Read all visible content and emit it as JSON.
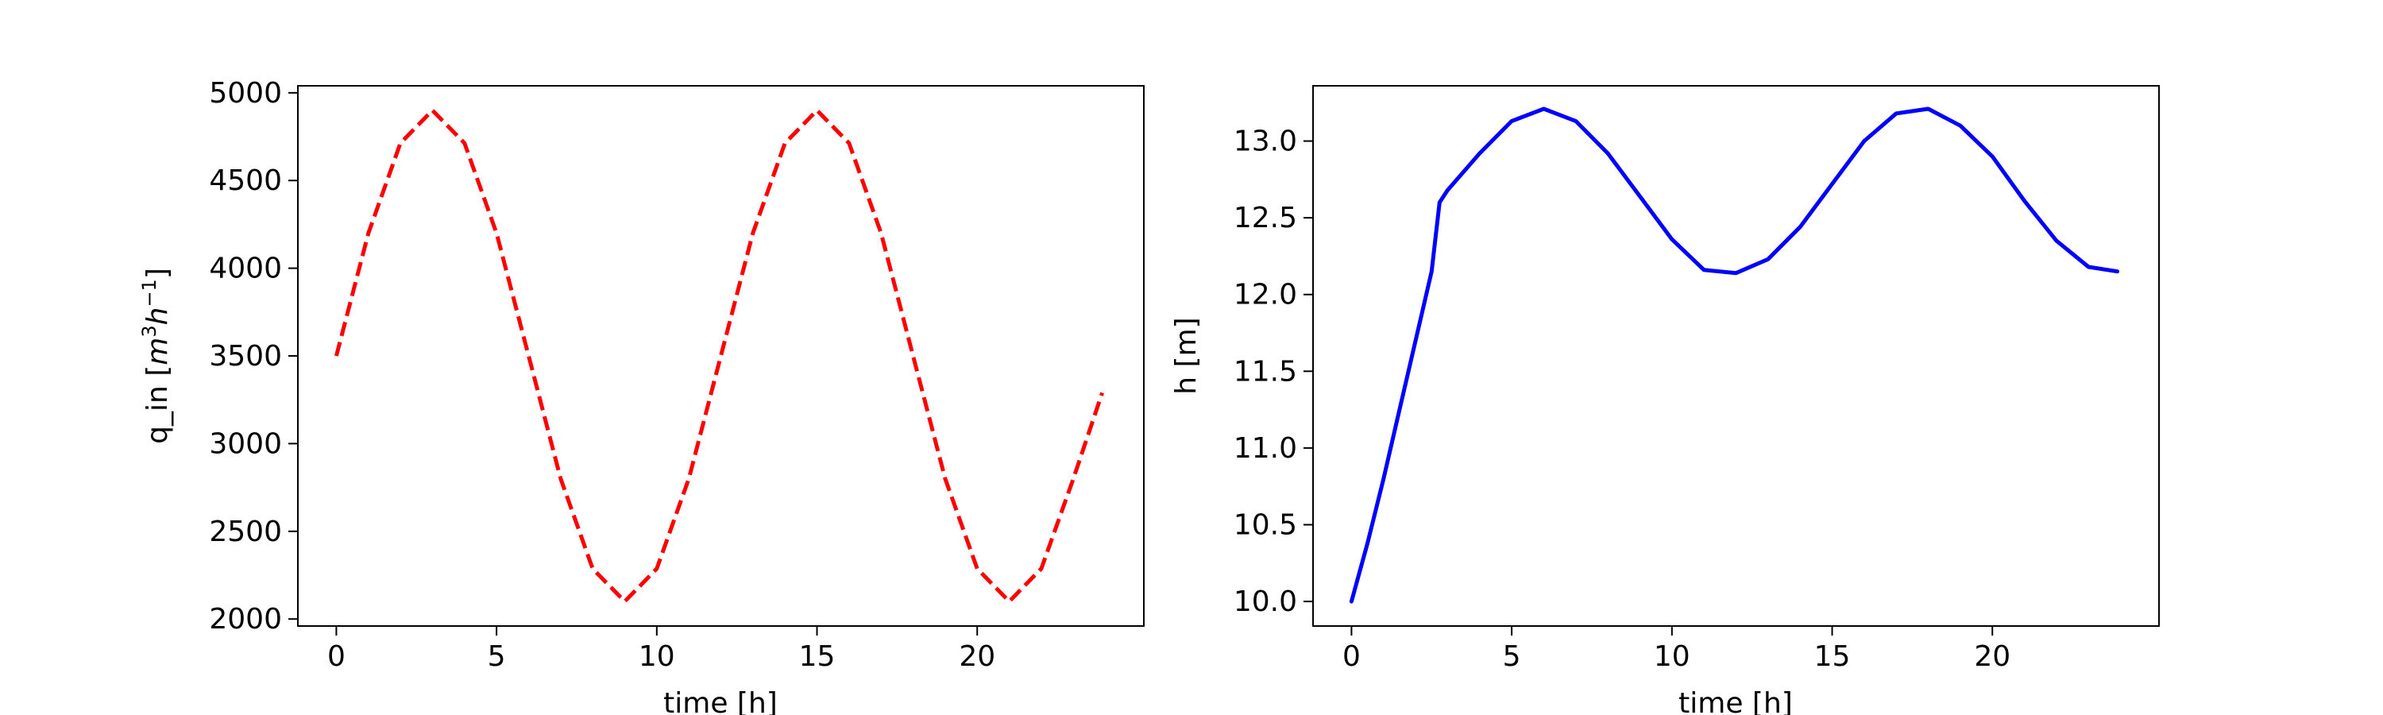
{
  "chart_data": [
    {
      "type": "line",
      "xlabel": "time [h]",
      "ylabel_parts": [
        "q_in [",
        "m",
        "3",
        "h",
        "−1",
        "]"
      ],
      "xlim": [
        -1.2,
        25.2
      ],
      "ylim": [
        1960,
        5040
      ],
      "xticks": [
        0,
        5,
        10,
        15,
        20
      ],
      "yticks": [
        2000,
        2500,
        3000,
        3500,
        4000,
        4500,
        5000
      ],
      "grid": false,
      "series": [
        {
          "color": "#ff0000",
          "style": "dashed",
          "x": [
            0,
            1,
            2,
            3,
            4,
            5,
            6,
            7,
            8,
            9,
            10,
            11,
            12,
            13,
            14,
            15,
            16,
            17,
            18,
            19,
            20,
            21,
            22,
            23,
            23.9
          ],
          "y": [
            3500,
            4200,
            4713,
            4900,
            4713,
            4200,
            3500,
            2800,
            2287,
            2100,
            2287,
            2800,
            3500,
            4200,
            4713,
            4900,
            4713,
            4200,
            3500,
            2800,
            2287,
            2100,
            2287,
            2800,
            3290
          ]
        }
      ]
    },
    {
      "type": "line",
      "xlabel": "time [h]",
      "ylabel": "h [m]",
      "xlim": [
        -1.2,
        25.2
      ],
      "ylim": [
        9.84,
        13.36
      ],
      "xticks": [
        0,
        5,
        10,
        15,
        20
      ],
      "yticks": [
        10.0,
        10.5,
        11.0,
        11.5,
        12.0,
        12.5,
        13.0
      ],
      "grid": false,
      "series": [
        {
          "color": "#0000ff",
          "style": "solid",
          "x": [
            0,
            0.5,
            1,
            1.5,
            2,
            2.5,
            2.75,
            3,
            4,
            5,
            6,
            7,
            8,
            9,
            10,
            11,
            12,
            13,
            14,
            15,
            16,
            17,
            18,
            19,
            20,
            21,
            22,
            23,
            23.9
          ],
          "y": [
            10.0,
            10.38,
            10.8,
            11.25,
            11.7,
            12.15,
            12.6,
            12.68,
            12.92,
            13.13,
            13.21,
            13.13,
            12.92,
            12.64,
            12.36,
            12.16,
            12.14,
            12.23,
            12.44,
            12.72,
            13.0,
            13.18,
            13.21,
            13.1,
            12.9,
            12.61,
            12.35,
            12.18,
            12.15
          ]
        }
      ]
    }
  ]
}
